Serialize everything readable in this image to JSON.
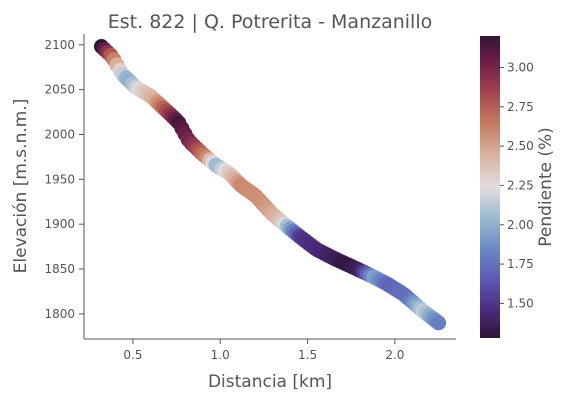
{
  "chart_data": {
    "type": "scatter",
    "title": "Est. 822 | Q. Potrerita - Manzanillo",
    "xlabel": "Distancia [km]",
    "ylabel": "Elevación [m.s.n.m.]",
    "xlim": [
      0.22,
      2.35
    ],
    "ylim": [
      1772,
      2112
    ],
    "xticks": [
      0.5,
      1.0,
      1.5,
      2.0
    ],
    "xtick_labels": [
      "0.5",
      "1.0",
      "1.5",
      "2.0"
    ],
    "yticks": [
      1800,
      1850,
      1900,
      1950,
      2000,
      2050,
      2100
    ],
    "ytick_labels": [
      "1800",
      "1850",
      "1900",
      "1950",
      "2000",
      "2050",
      "2100"
    ],
    "grid": false,
    "colorbar": {
      "label": "Pendiente (%)",
      "range": [
        1.28,
        3.2
      ],
      "ticks": [
        1.5,
        1.75,
        2.0,
        2.25,
        2.5,
        2.75,
        3.0
      ],
      "tick_labels": [
        "1.50",
        "1.75",
        "2.00",
        "2.25",
        "2.50",
        "2.75",
        "3.00"
      ],
      "colormap": "twilight_shifted",
      "stops": [
        {
          "v": 1.28,
          "color": "#2f1436"
        },
        {
          "v": 1.45,
          "color": "#4a2a7a"
        },
        {
          "v": 1.65,
          "color": "#5d58b4"
        },
        {
          "v": 1.85,
          "color": "#6a8bc4"
        },
        {
          "v": 2.05,
          "color": "#9cbcd0"
        },
        {
          "v": 2.24,
          "color": "#e2dce0"
        },
        {
          "v": 2.45,
          "color": "#d9b09c"
        },
        {
          "v": 2.65,
          "color": "#c47a5c"
        },
        {
          "v": 2.85,
          "color": "#a3424f"
        },
        {
          "v": 3.05,
          "color": "#6a1d48"
        },
        {
          "v": 3.2,
          "color": "#301436"
        }
      ]
    },
    "profile": [
      {
        "x": 0.32,
        "y": 2098
      },
      {
        "x": 0.38,
        "y": 2087
      },
      {
        "x": 0.44,
        "y": 2067
      },
      {
        "x": 0.52,
        "y": 2052
      },
      {
        "x": 0.6,
        "y": 2043
      },
      {
        "x": 0.7,
        "y": 2025
      },
      {
        "x": 0.76,
        "y": 2014
      },
      {
        "x": 0.82,
        "y": 1993
      },
      {
        "x": 0.9,
        "y": 1978
      },
      {
        "x": 0.98,
        "y": 1965
      },
      {
        "x": 1.05,
        "y": 1957
      },
      {
        "x": 1.12,
        "y": 1943
      },
      {
        "x": 1.2,
        "y": 1932
      },
      {
        "x": 1.3,
        "y": 1911
      },
      {
        "x": 1.38,
        "y": 1898
      },
      {
        "x": 1.45,
        "y": 1887
      },
      {
        "x": 1.55,
        "y": 1872
      },
      {
        "x": 1.65,
        "y": 1862
      },
      {
        "x": 1.75,
        "y": 1853
      },
      {
        "x": 1.85,
        "y": 1844
      },
      {
        "x": 1.95,
        "y": 1834
      },
      {
        "x": 2.05,
        "y": 1822
      },
      {
        "x": 2.15,
        "y": 1805
      },
      {
        "x": 2.25,
        "y": 1790
      }
    ],
    "slope_profile": [
      {
        "x": 0.32,
        "v": 3.2
      },
      {
        "x": 0.36,
        "v": 2.9
      },
      {
        "x": 0.42,
        "v": 2.35
      },
      {
        "x": 0.47,
        "v": 1.95
      },
      {
        "x": 0.55,
        "v": 2.3
      },
      {
        "x": 0.62,
        "v": 2.45
      },
      {
        "x": 0.68,
        "v": 2.75
      },
      {
        "x": 0.76,
        "v": 3.15
      },
      {
        "x": 0.84,
        "v": 2.95
      },
      {
        "x": 0.92,
        "v": 2.6
      },
      {
        "x": 0.98,
        "v": 2.0
      },
      {
        "x": 1.03,
        "v": 2.25
      },
      {
        "x": 1.12,
        "v": 2.6
      },
      {
        "x": 1.25,
        "v": 2.55
      },
      {
        "x": 1.34,
        "v": 2.4
      },
      {
        "x": 1.4,
        "v": 1.95
      },
      {
        "x": 1.46,
        "v": 1.5
      },
      {
        "x": 1.6,
        "v": 1.42
      },
      {
        "x": 1.72,
        "v": 1.3
      },
      {
        "x": 1.8,
        "v": 1.38
      },
      {
        "x": 1.88,
        "v": 1.95
      },
      {
        "x": 1.96,
        "v": 1.7
      },
      {
        "x": 2.08,
        "v": 1.75
      },
      {
        "x": 2.16,
        "v": 2.15
      },
      {
        "x": 2.22,
        "v": 1.9
      },
      {
        "x": 2.25,
        "v": 1.8
      }
    ],
    "point_count": 110
  }
}
